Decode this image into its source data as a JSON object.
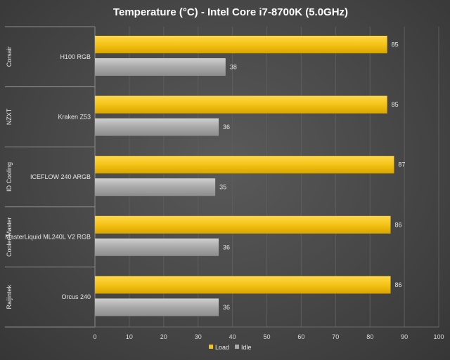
{
  "chart_data": {
    "type": "bar",
    "orientation": "horizontal",
    "title": "Temperature  (°C) - Intel Core i7-8700K (5.0GHz)",
    "xlabel": "",
    "ylabel": "",
    "xlim": [
      0,
      100
    ],
    "ticks": [
      0,
      10,
      20,
      30,
      40,
      50,
      60,
      70,
      80,
      90,
      100
    ],
    "grid": true,
    "legend_position": "bottom",
    "groups": [
      {
        "brand": "Corsair",
        "product": "H100 RGB"
      },
      {
        "brand": "NZXT",
        "product": "Kraken Z53"
      },
      {
        "brand": "ID Cooling",
        "product": "ICEFLOW 240 ARGB"
      },
      {
        "brand": "Cooler Master",
        "product": "MasterLiquid ML240L V2 RGB"
      },
      {
        "brand": "Raijintek",
        "product": "Orcus 240"
      }
    ],
    "series": [
      {
        "name": "Load",
        "color": "#f2c318",
        "values": [
          85,
          85,
          87,
          86,
          86
        ]
      },
      {
        "name": "Idle",
        "color": "#a9a9a9",
        "values": [
          38,
          36,
          35,
          36,
          36
        ]
      }
    ]
  }
}
